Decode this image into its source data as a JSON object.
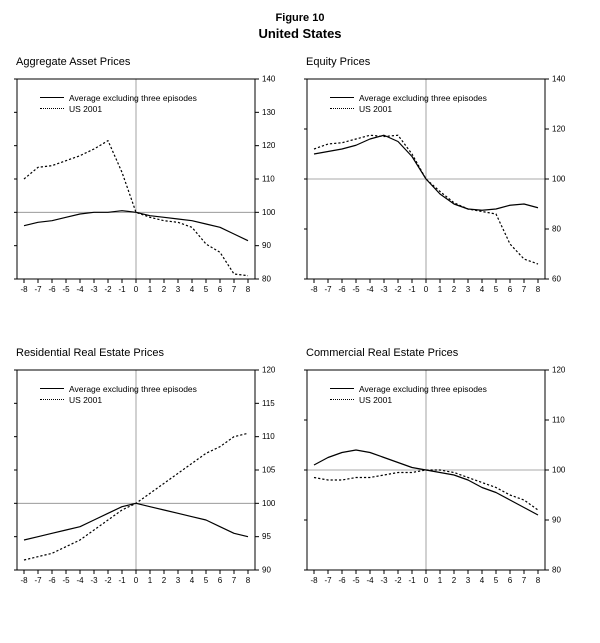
{
  "figure": {
    "number": "Figure 10",
    "title": "United States"
  },
  "colors": {
    "line": "#000000",
    "reference": "#8c8c8c",
    "background": "#ffffff"
  },
  "chart_data": [
    {
      "type": "line",
      "title": "Aggregate Asset Prices",
      "x": [
        -8,
        -7,
        -6,
        -5,
        -4,
        -3,
        -2,
        -1,
        0,
        1,
        2,
        3,
        4,
        5,
        6,
        7,
        8
      ],
      "xlim": [
        -8.5,
        8.5
      ],
      "ylim": [
        80,
        140
      ],
      "yticks": [
        80,
        90,
        100,
        110,
        120,
        130,
        140
      ],
      "ref_y": 100,
      "ref_x": 0,
      "legend_position": "top-left",
      "series": [
        {
          "name": "Average excluding three episodes",
          "style": "solid",
          "values": [
            96,
            97,
            97.5,
            98.5,
            99.5,
            100,
            100,
            100.5,
            100,
            99,
            98.5,
            98,
            97.5,
            96.5,
            95.5,
            93.5,
            91.5
          ]
        },
        {
          "name": "US 2001",
          "style": "dotted",
          "values": [
            110,
            113.5,
            114,
            115.5,
            117,
            119,
            121.5,
            112,
            100,
            98.5,
            97.5,
            97,
            95.5,
            90.5,
            88,
            81.5,
            81
          ]
        }
      ]
    },
    {
      "type": "line",
      "title": "Equity Prices",
      "x": [
        -8,
        -7,
        -6,
        -5,
        -4,
        -3,
        -2,
        -1,
        0,
        1,
        2,
        3,
        4,
        5,
        6,
        7,
        8
      ],
      "xlim": [
        -8.5,
        8.5
      ],
      "ylim": [
        60,
        140
      ],
      "yticks": [
        60,
        80,
        100,
        120,
        140
      ],
      "ref_y": 100,
      "ref_x": 0,
      "legend_position": "top-left",
      "series": [
        {
          "name": "Average excluding three episodes",
          "style": "solid",
          "values": [
            110,
            111,
            112,
            113.5,
            116,
            117.5,
            115,
            109,
            100,
            94,
            90,
            88,
            87.5,
            88,
            89.5,
            90,
            88.5
          ]
        },
        {
          "name": "US 2001",
          "style": "dotted",
          "values": [
            112,
            114,
            114.5,
            116,
            117.5,
            117,
            117.5,
            110,
            100,
            95,
            90.5,
            88,
            87,
            86,
            74,
            68,
            66
          ]
        }
      ]
    },
    {
      "type": "line",
      "title": "Residential Real Estate Prices",
      "x": [
        -8,
        -7,
        -6,
        -5,
        -4,
        -3,
        -2,
        -1,
        0,
        1,
        2,
        3,
        4,
        5,
        6,
        7,
        8
      ],
      "xlim": [
        -8.5,
        8.5
      ],
      "ylim": [
        90,
        120
      ],
      "yticks": [
        90,
        95,
        100,
        105,
        110,
        115,
        120
      ],
      "ref_y": 100,
      "ref_x": 0,
      "legend_position": "top-left",
      "series": [
        {
          "name": "Average excluding three episodes",
          "style": "solid",
          "values": [
            94.5,
            95,
            95.5,
            96,
            96.5,
            97.5,
            98.5,
            99.5,
            100,
            99.5,
            99,
            98.5,
            98,
            97.5,
            96.5,
            95.5,
            95
          ]
        },
        {
          "name": "US 2001",
          "style": "dotted",
          "values": [
            91.5,
            92,
            92.5,
            93.5,
            94.5,
            96,
            97.5,
            99,
            100,
            101.5,
            103,
            104.5,
            106,
            107.5,
            108.5,
            110,
            110.5
          ]
        }
      ]
    },
    {
      "type": "line",
      "title": "Commercial Real Estate Prices",
      "x": [
        -8,
        -7,
        -6,
        -5,
        -4,
        -3,
        -2,
        -1,
        0,
        1,
        2,
        3,
        4,
        5,
        6,
        7,
        8
      ],
      "xlim": [
        -8.5,
        8.5
      ],
      "ylim": [
        80,
        120
      ],
      "yticks": [
        80,
        90,
        100,
        110,
        120
      ],
      "ref_y": 100,
      "ref_x": 0,
      "legend_position": "top-left",
      "series": [
        {
          "name": "Average excluding three episodes",
          "style": "solid",
          "values": [
            101,
            102.5,
            103.5,
            104,
            103.5,
            102.5,
            101.5,
            100.5,
            100,
            99.5,
            99,
            98,
            96.5,
            95.5,
            94,
            92.5,
            91
          ]
        },
        {
          "name": "US 2001",
          "style": "dotted",
          "values": [
            98.5,
            98,
            98,
            98.5,
            98.5,
            99,
            99.5,
            99.5,
            100,
            100,
            99.5,
            98.5,
            97.5,
            96.5,
            95,
            94,
            92
          ]
        }
      ]
    }
  ]
}
